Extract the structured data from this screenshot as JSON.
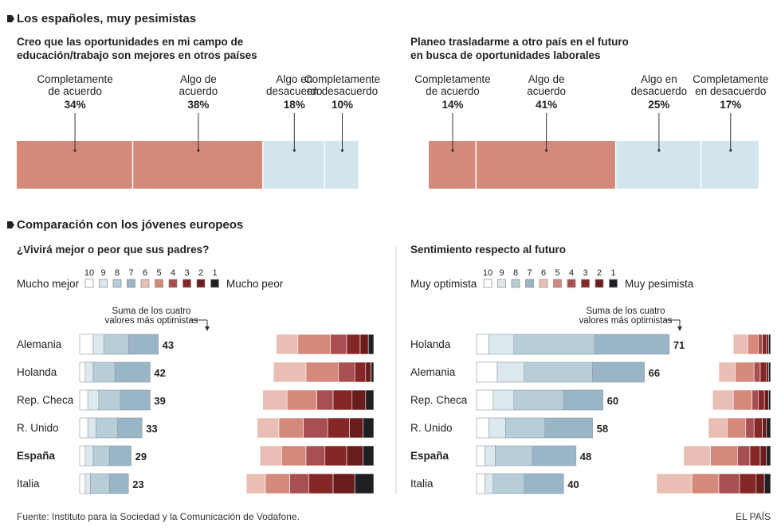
{
  "header": {
    "section1_title": "Los españoles, muy pesimistas",
    "section2_title": "Comparación con los jóvenes europeos",
    "source": "Fuente: Instituto para la Sociedad y la Comunicación de Vodafone.",
    "brand": "EL PAÍS"
  },
  "colors": {
    "warm_bar": "#d4897b",
    "cool_bar": "#d2e4ec",
    "scale": [
      "#ffffff",
      "#dde8ee",
      "#b7ced9",
      "#9ab5c5",
      "#e9beb4",
      "#d4897b",
      "#a84f52",
      "#862727",
      "#6b1c1c",
      "#1f1f26"
    ],
    "text": "#222222",
    "divider": "#cccccc"
  },
  "chart_data": [
    {
      "type": "bar",
      "orientation": "stacked-horizontal",
      "title": "Creo que las oportunidades en mi campo de educación/trabajo son mejores en otros países",
      "categories": [
        "Completamente de acuerdo",
        "Algo de acuerdo",
        "Algo en desacuerdo",
        "Completamente en desacuerdo"
      ],
      "values": [
        34,
        38,
        18,
        10
      ],
      "value_labels": [
        "34%",
        "38%",
        "18%",
        "10%"
      ]
    },
    {
      "type": "bar",
      "orientation": "stacked-horizontal",
      "title": "Planeo trasladarme a otro país en el futuro en busca de oportunidades laborales",
      "categories": [
        "Completamente de acuerdo",
        "Algo de acuerdo",
        "Algo en desacuerdo",
        "Completamente en desacuerdo"
      ],
      "values": [
        14,
        41,
        25,
        17
      ],
      "value_labels": [
        "14%",
        "41%",
        "25%",
        "17%"
      ]
    },
    {
      "type": "bar",
      "orientation": "diverging-stacked-horizontal",
      "title": "¿Vivirá mejor o peor que sus padres?",
      "scale_labels": [
        "10",
        "9",
        "8",
        "7",
        "6",
        "5",
        "4",
        "3",
        "2",
        "1"
      ],
      "scale_left_label": "Mucho mejor",
      "scale_right_label": "Mucho peor",
      "annotation": "Suma de los cuatro valores más optimistas",
      "countries": [
        "Alemania",
        "Holanda",
        "Rep. Checa",
        "R. Unido",
        "España",
        "Italia"
      ],
      "highlight": "España",
      "top4_sums": [
        43,
        42,
        39,
        33,
        29,
        23
      ],
      "shares": [
        [
          5,
          4,
          9,
          11,
          8,
          12,
          6,
          5,
          3,
          2
        ],
        [
          2,
          3,
          8,
          13,
          12,
          12,
          6,
          4,
          2,
          1
        ],
        [
          3,
          4,
          8,
          11,
          9,
          11,
          6,
          7,
          5,
          3
        ],
        [
          3,
          3,
          8,
          9,
          8,
          9,
          9,
          8,
          5,
          4
        ],
        [
          2,
          3,
          6,
          8,
          8,
          9,
          7,
          8,
          6,
          4
        ],
        [
          2,
          2,
          7,
          7,
          7,
          9,
          7,
          9,
          8,
          7
        ]
      ]
    },
    {
      "type": "bar",
      "orientation": "diverging-stacked-horizontal",
      "title": "Sentimiento respecto al futuro",
      "scale_labels": [
        "10",
        "9",
        "8",
        "7",
        "6",
        "5",
        "4",
        "3",
        "2",
        "1"
      ],
      "scale_left_label": "Muy optimista",
      "scale_right_label": "Muy pesimista",
      "annotation": "Suma de los cuatro valores más optimistas",
      "countries": [
        "Holanda",
        "Alemania",
        "Rep. Checa",
        "R. Unido",
        "España",
        "Italia"
      ],
      "highlight": "España",
      "top4_sums": [
        71,
        66,
        60,
        58,
        48,
        40
      ],
      "shares": [
        [
          6,
          12,
          39,
          36,
          7,
          5,
          2,
          2,
          1,
          1
        ],
        [
          10,
          13,
          33,
          25,
          8,
          9,
          3,
          3,
          1,
          1
        ],
        [
          8,
          10,
          24,
          19,
          10,
          9,
          3,
          3,
          2,
          1
        ],
        [
          6,
          8,
          19,
          23,
          9,
          9,
          4,
          4,
          2,
          2
        ],
        [
          4,
          5,
          18,
          21,
          13,
          13,
          6,
          5,
          3,
          2
        ],
        [
          4,
          4,
          15,
          19,
          17,
          13,
          10,
          8,
          4,
          3
        ]
      ]
    }
  ]
}
